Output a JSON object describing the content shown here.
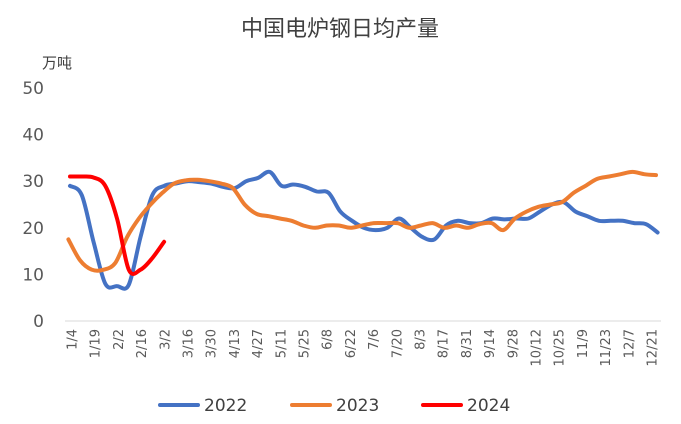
{
  "chart_data": {
    "type": "line",
    "title": "中国电炉钢日均产量",
    "ylabel": "万吨",
    "ylim": [
      0,
      50
    ],
    "yticks": [
      0,
      10,
      20,
      30,
      40,
      50
    ],
    "categories": [
      "1/4",
      "1/19",
      "2/2",
      "2/16",
      "3/2",
      "3/16",
      "3/30",
      "4/13",
      "4/27",
      "5/11",
      "5/25",
      "6/8",
      "6/22",
      "7/6",
      "7/20",
      "8/3",
      "8/17",
      "8/31",
      "9/14",
      "9/28",
      "10/12",
      "10/25",
      "11/9",
      "11/23",
      "12/7",
      "12/21"
    ],
    "x_range": [
      1,
      356
    ],
    "grid": false,
    "legend_position": "bottom",
    "series": [
      {
        "name": "2022",
        "color": "#4472C4",
        "x": [
          4,
          11,
          18,
          25,
          32,
          39,
          46,
          53,
          60,
          67,
          74,
          81,
          88,
          95,
          102,
          109,
          116,
          123,
          130,
          137,
          144,
          151,
          158,
          165,
          172,
          179,
          186,
          193,
          200,
          207,
          214,
          221,
          228,
          235,
          242,
          249,
          256,
          263,
          270,
          277,
          284,
          291,
          298,
          305,
          312,
          319,
          326,
          333,
          340,
          347,
          354
        ],
        "values": [
          29,
          27,
          17,
          8,
          7.5,
          7.8,
          18,
          27,
          29,
          29.5,
          30,
          29.8,
          29.5,
          28.8,
          28.5,
          30,
          30.7,
          32,
          29,
          29.3,
          28.8,
          27.8,
          27.5,
          23.5,
          21.5,
          20,
          19.5,
          20,
          22,
          20,
          18,
          17.5,
          20.5,
          21.5,
          21,
          21,
          22,
          21.8,
          22,
          22,
          23.5,
          25,
          25.5,
          23.5,
          22.5,
          21.5,
          21.5,
          21.5,
          21,
          20.8,
          19
        ]
      },
      {
        "name": "2023",
        "color": "#ED7D31",
        "x": [
          3,
          10,
          17,
          24,
          31,
          38,
          45,
          52,
          59,
          66,
          73,
          80,
          87,
          94,
          101,
          108,
          115,
          122,
          129,
          136,
          143,
          150,
          157,
          164,
          171,
          178,
          185,
          192,
          199,
          206,
          213,
          220,
          227,
          234,
          241,
          248,
          255,
          262,
          269,
          276,
          283,
          290,
          297,
          304,
          311,
          318,
          325,
          332,
          339,
          346,
          353
        ],
        "values": [
          17.5,
          13,
          11,
          11,
          12.5,
          18,
          22,
          25,
          27.5,
          29.5,
          30.2,
          30.3,
          30,
          29.5,
          28.5,
          25,
          23,
          22.5,
          22,
          21.5,
          20.5,
          20,
          20.5,
          20.5,
          20,
          20.5,
          21,
          21,
          21,
          20,
          20.5,
          21,
          20,
          20.5,
          20,
          20.8,
          21,
          19.5,
          22,
          23.5,
          24.5,
          25,
          25.5,
          27.5,
          29,
          30.5,
          31,
          31.5,
          32,
          31.5,
          31.3
        ]
      },
      {
        "name": "2024",
        "color": "#FF0000",
        "x": [
          4,
          11,
          18,
          25,
          32,
          39,
          46,
          53,
          60
        ],
        "values": [
          31,
          31,
          30.8,
          29,
          22,
          11,
          11,
          13.5,
          17
        ]
      }
    ]
  }
}
